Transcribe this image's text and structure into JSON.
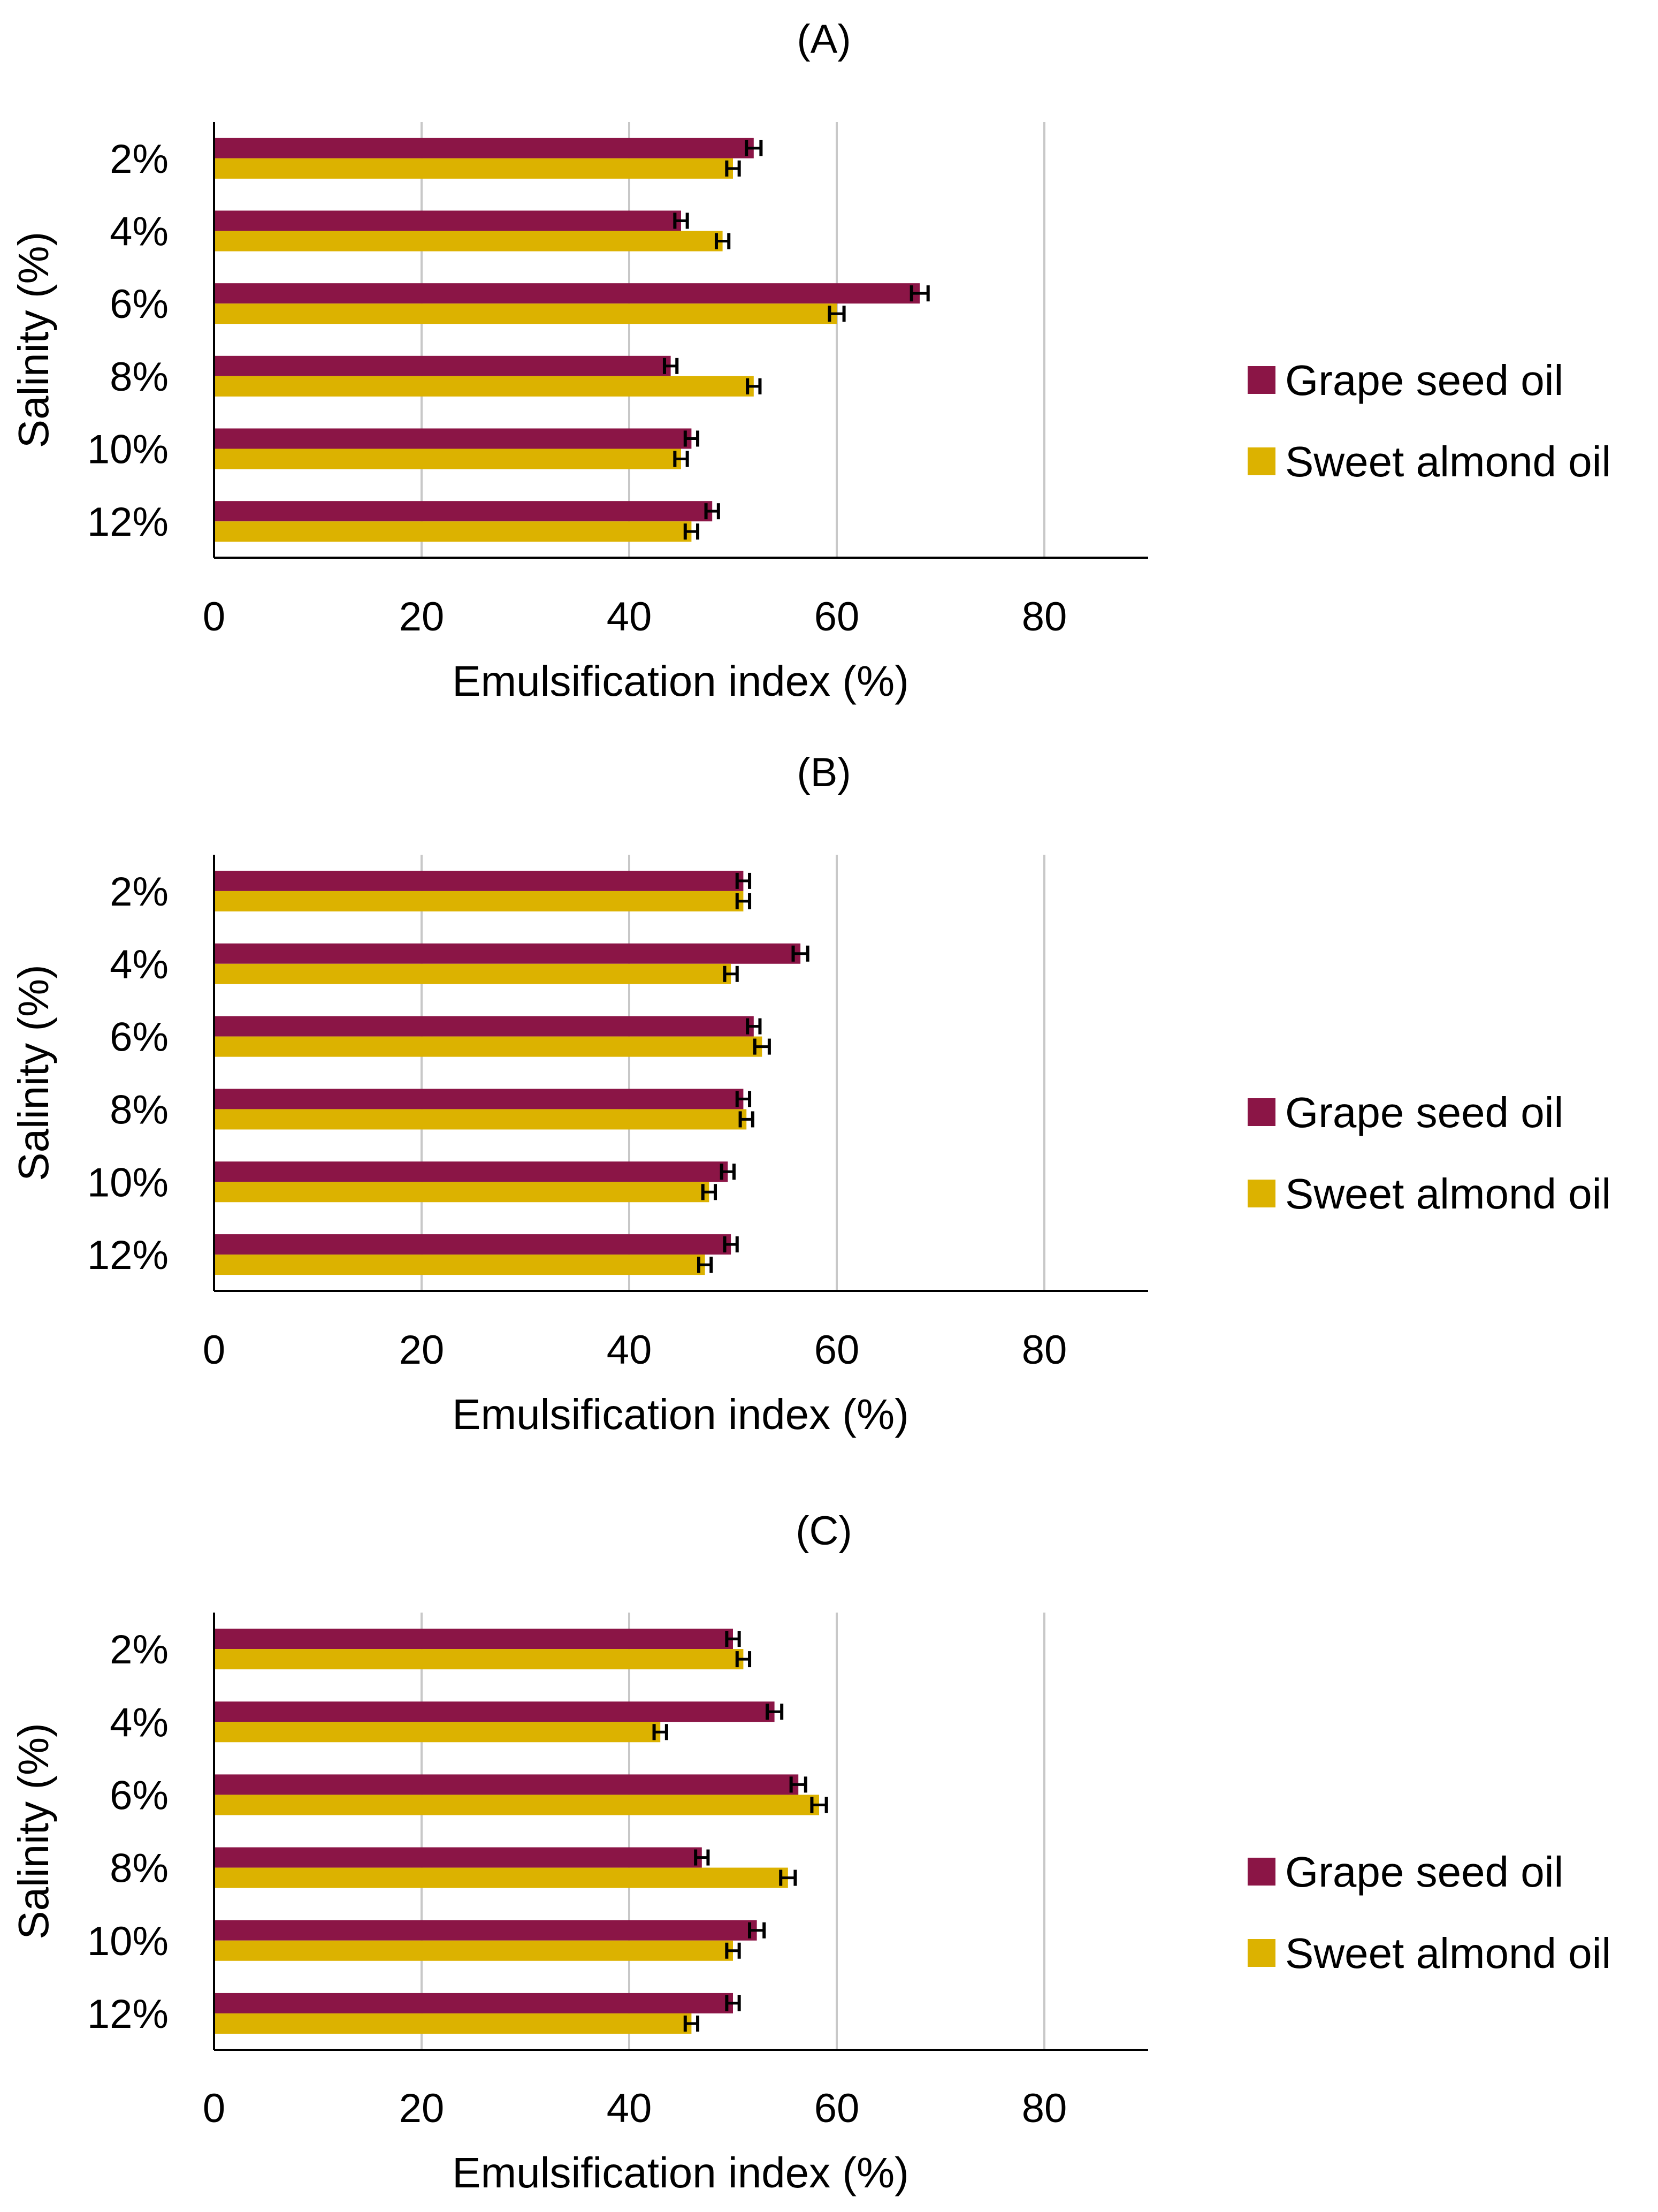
{
  "figure": {
    "colors": {
      "grape": "#8b1546",
      "almond": "#dcb200",
      "grid": "#c8c8c8",
      "axis": "#000000",
      "errorbar": "#000000"
    }
  },
  "chart_data": [
    {
      "type": "bar",
      "orientation": "horizontal",
      "panel_label": "(A)",
      "categories": [
        "2%",
        "4%",
        "6%",
        "8%",
        "10%",
        "12%"
      ],
      "series": [
        {
          "name": "Grape seed oil",
          "values": [
            52,
            45,
            68,
            44,
            46,
            48
          ],
          "errors": [
            0.7,
            0.6,
            0.8,
            0.6,
            0.6,
            0.6
          ]
        },
        {
          "name": "Sweet almond oil",
          "values": [
            50,
            49,
            60,
            52,
            45,
            46
          ],
          "errors": [
            0.6,
            0.6,
            0.7,
            0.6,
            0.6,
            0.6
          ]
        }
      ],
      "xlabel": "Emulsification index (%)",
      "ylabel": "Salinity (%)",
      "xlim": [
        0,
        90
      ],
      "xticks": [
        0,
        20,
        40,
        60,
        80
      ],
      "grid": true,
      "legend": "right"
    },
    {
      "type": "bar",
      "orientation": "horizontal",
      "panel_label": "(B)",
      "categories": [
        "2%",
        "4%",
        "6%",
        "8%",
        "10%",
        "12%"
      ],
      "series": [
        {
          "name": "Grape seed oil",
          "values": [
            51,
            56.5,
            52,
            51,
            49.5,
            49.8
          ],
          "errors": [
            0.6,
            0.7,
            0.6,
            0.6,
            0.6,
            0.6
          ]
        },
        {
          "name": "Sweet almond oil",
          "values": [
            51,
            49.8,
            52.8,
            51.3,
            47.7,
            47.3
          ],
          "errors": [
            0.6,
            0.6,
            0.7,
            0.6,
            0.6,
            0.6
          ]
        }
      ],
      "xlabel": "Emulsification index (%)",
      "ylabel": "Salinity (%)",
      "xlim": [
        0,
        90
      ],
      "xticks": [
        0,
        20,
        40,
        60,
        80
      ],
      "grid": true,
      "legend": "right"
    },
    {
      "type": "bar",
      "orientation": "horizontal",
      "panel_label": "(C)",
      "categories": [
        "2%",
        "4%",
        "6%",
        "8%",
        "10%",
        "12%"
      ],
      "series": [
        {
          "name": "Grape seed oil",
          "values": [
            50,
            54,
            56.3,
            47,
            52.3,
            50
          ],
          "errors": [
            0.6,
            0.7,
            0.7,
            0.6,
            0.7,
            0.6
          ]
        },
        {
          "name": "Sweet almond oil",
          "values": [
            51,
            43,
            58.3,
            55.3,
            50,
            46
          ],
          "errors": [
            0.6,
            0.6,
            0.7,
            0.7,
            0.6,
            0.6
          ]
        }
      ],
      "xlabel": "Emulsification index (%)",
      "ylabel": "Salinity (%)",
      "xlim": [
        0,
        90
      ],
      "xticks": [
        0,
        20,
        40,
        60,
        80
      ],
      "grid": true,
      "legend": "right"
    }
  ]
}
